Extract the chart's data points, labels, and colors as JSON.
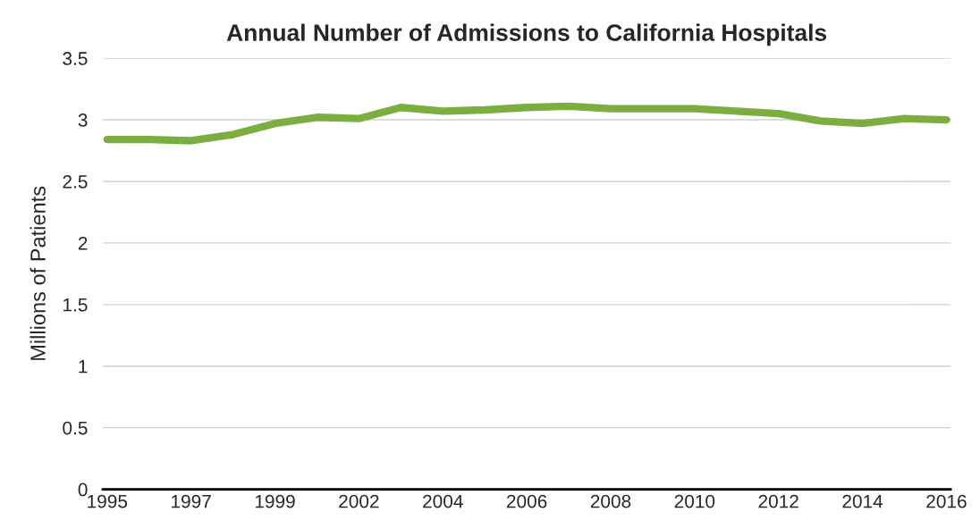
{
  "chart_data": {
    "type": "line",
    "title": "Annual Number of Admissions to California Hospitals",
    "ylabel": "Millions of Patients",
    "categories": [
      "1995",
      null,
      "1997",
      null,
      "1999",
      null,
      "2002",
      null,
      "2004",
      null,
      "2006",
      null,
      "2008",
      null,
      "2010",
      null,
      "2012",
      null,
      "2014",
      null,
      "2016"
    ],
    "series": [
      {
        "color": "#7aaf3f",
        "values": [
          2.84,
          2.84,
          2.83,
          2.88,
          2.97,
          3.02,
          3.01,
          3.1,
          3.07,
          3.08,
          3.1,
          3.11,
          3.09,
          3.09,
          3.09,
          3.07,
          3.05,
          2.99,
          2.97,
          3.01,
          3.0
        ]
      }
    ],
    "ylim": [
      0,
      3.5
    ],
    "yticks": [
      0,
      0.5,
      1,
      1.5,
      2,
      2.5,
      3,
      3.5
    ],
    "grid": "y",
    "marker": "none",
    "line_style": "solid"
  }
}
